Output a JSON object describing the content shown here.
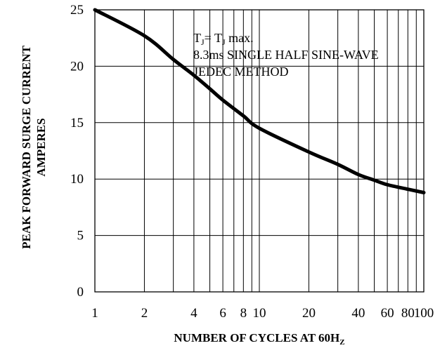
{
  "chart_data": {
    "type": "line",
    "x_scale": "log",
    "y_scale": "linear",
    "xlim": [
      1,
      100
    ],
    "ylim": [
      0,
      25
    ],
    "grid": true,
    "ylabel_lines": [
      "PEAK FORWARD SURGE CURRENT",
      "AMPERES"
    ],
    "xlabel": {
      "main": "NUMBER OF CYCLES AT 60H",
      "sub": "Z"
    },
    "annotations": [
      {
        "a": "T",
        "a_sub": "J",
        "mid": "= T",
        "b_sub": "J",
        "tail": " max."
      },
      "8.3ms SINGLE HALF SINE-WAVE",
      "JEDEC METHOD"
    ],
    "y_ticks": [
      {
        "value": 0,
        "label": "0"
      },
      {
        "value": 5,
        "label": "5"
      },
      {
        "value": 10,
        "label": "10"
      },
      {
        "value": 15,
        "label": "15"
      },
      {
        "value": 20,
        "label": "20"
      },
      {
        "value": 25,
        "label": "25"
      }
    ],
    "x_tick_labels": [
      {
        "value": 1,
        "label": "1"
      },
      {
        "value": 2,
        "label": "2"
      },
      {
        "value": 4,
        "label": "4"
      },
      {
        "value": 6,
        "label": "6"
      },
      {
        "value": 8,
        "label": "8"
      },
      {
        "value": 10,
        "label": "10"
      },
      {
        "value": 20,
        "label": "20"
      },
      {
        "value": 40,
        "label": "40"
      },
      {
        "value": 60,
        "label": "60"
      },
      {
        "value": 80,
        "label": "80"
      },
      {
        "value": 100,
        "label": "100"
      }
    ],
    "x_gridlines": [
      1,
      2,
      3,
      4,
      5,
      6,
      7,
      8,
      9,
      10,
      20,
      30,
      40,
      50,
      60,
      70,
      80,
      90,
      100
    ],
    "series": [
      {
        "color": "#000000",
        "points": [
          [
            1,
            25.0
          ],
          [
            2,
            22.7
          ],
          [
            3,
            20.6
          ],
          [
            4,
            19.2
          ],
          [
            5,
            18.0
          ],
          [
            6,
            17.0
          ],
          [
            8,
            15.6
          ],
          [
            10,
            14.5
          ],
          [
            20,
            12.4
          ],
          [
            30,
            11.3
          ],
          [
            40,
            10.4
          ],
          [
            50,
            9.9
          ],
          [
            60,
            9.5
          ],
          [
            80,
            9.1
          ],
          [
            100,
            8.8
          ]
        ]
      }
    ]
  }
}
